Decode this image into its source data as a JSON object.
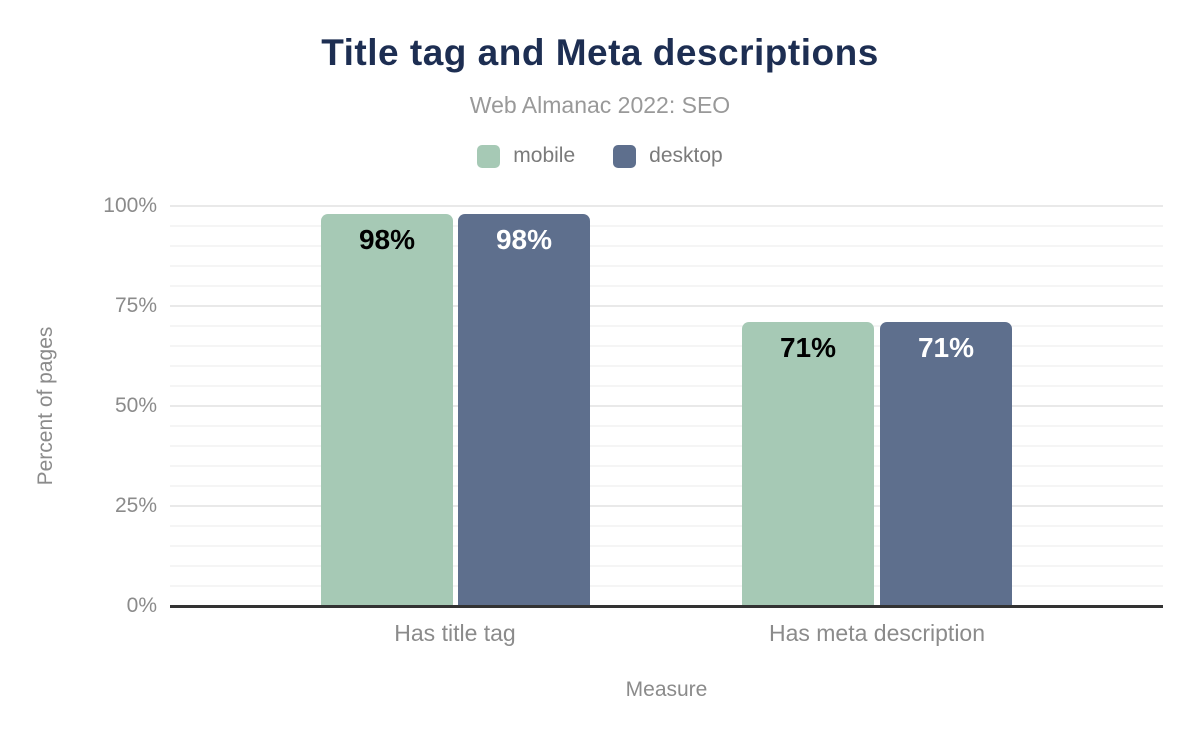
{
  "header": {
    "title": "Title tag and Meta descriptions",
    "subtitle": "Web Almanac 2022: SEO"
  },
  "legend": [
    {
      "label": "mobile",
      "color": "#a6c9b5",
      "value_text_color": "#000000"
    },
    {
      "label": "desktop",
      "color": "#5e6f8d",
      "value_text_color": "#ffffff"
    }
  ],
  "chart_data": {
    "type": "bar",
    "title": "Title tag and Meta descriptions",
    "subtitle": "Web Almanac 2022: SEO",
    "categories": [
      "Has title tag",
      "Has meta description"
    ],
    "series": [
      {
        "name": "mobile",
        "values": [
          98,
          71
        ],
        "color": "#a6c9b5",
        "label_color": "#000000"
      },
      {
        "name": "desktop",
        "values": [
          98,
          71
        ],
        "color": "#5e6f8d",
        "label_color": "#ffffff"
      }
    ],
    "xlabel": "Measure",
    "ylabel": "Percent of pages",
    "ylim": [
      0,
      100
    ],
    "yticks": [
      0,
      25,
      50,
      75,
      100
    ],
    "ytick_suffix": "%",
    "value_label_suffix": "%",
    "minor_grid_step": 5,
    "major_grid_step": 25,
    "grid": true,
    "legend_position": "top",
    "colors": {
      "title": "#1d2e52",
      "subtitle": "#999999",
      "axis_text": "#8b8b8b",
      "axis_line": "#333333",
      "major_grid": "#e9e9e9",
      "minor_grid": "#f5f5f5",
      "background": "#ffffff"
    }
  }
}
